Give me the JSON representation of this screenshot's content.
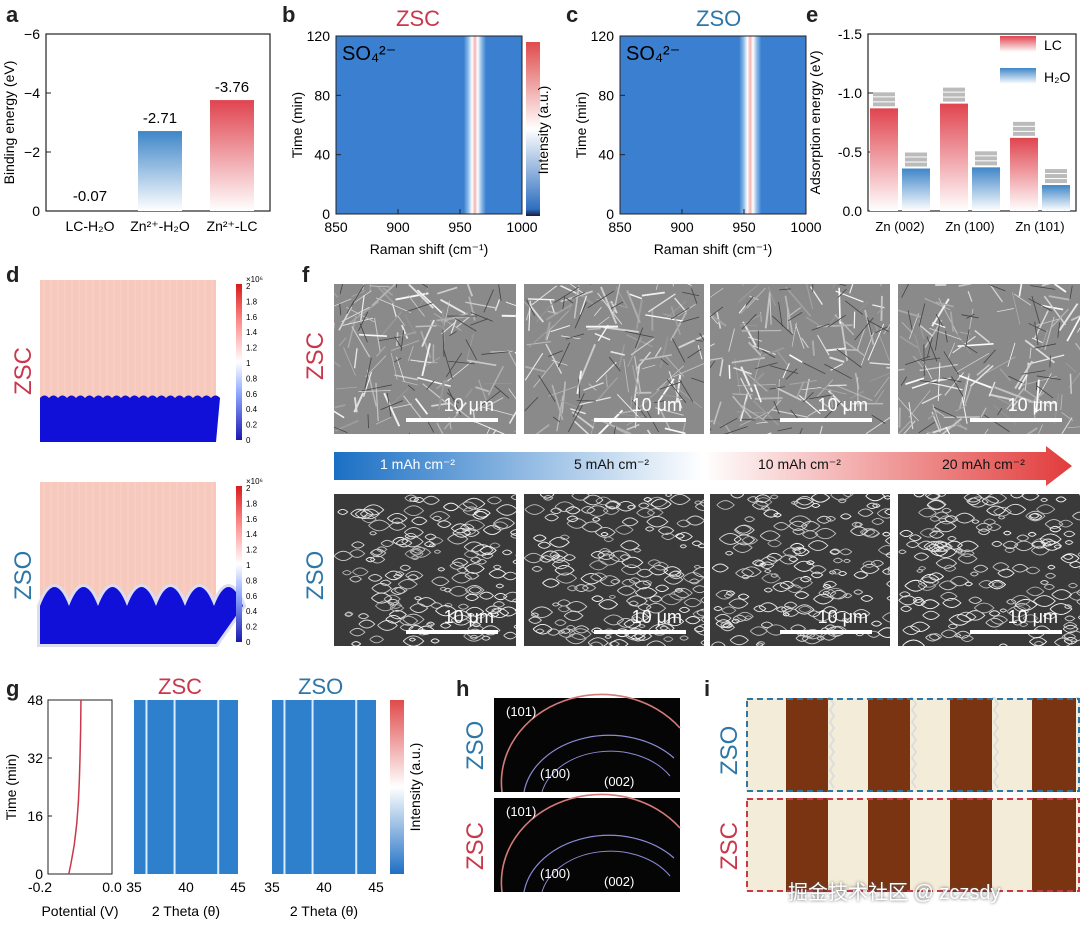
{
  "panels": {
    "a": "a",
    "b": "b",
    "c": "c",
    "d": "d",
    "e": "e",
    "f": "f",
    "g": "g",
    "h": "h",
    "i": "i"
  },
  "colors": {
    "red": "#c9374b",
    "blue": "#2d77a8",
    "map_blue": "#2e7fcc",
    "map_red": "#e23b3b"
  },
  "chart_data": [
    {
      "panel": "a",
      "type": "bar",
      "categories": [
        "LC-H₂O",
        "Zn²⁺-H₂O",
        "Zn²⁺-LC"
      ],
      "values": [
        -0.07,
        -2.71,
        -3.76
      ],
      "value_labels": [
        "-0.07",
        "-2.71",
        "-3.76"
      ],
      "ylabel": "Binding energy (eV)",
      "yticks": [
        "−6",
        "−4",
        "−2",
        "0"
      ],
      "ylim": [
        0,
        -6
      ]
    },
    {
      "panel": "e",
      "type": "bar",
      "categories": [
        "Zn (002)",
        "Zn (100)",
        "Zn (101)"
      ],
      "series": [
        {
          "name": "LC",
          "values": [
            -0.87,
            -0.91,
            -0.62
          ]
        },
        {
          "name": "H₂O",
          "values": [
            -0.36,
            -0.37,
            -0.22
          ]
        }
      ],
      "ylabel": "Adsorption energy (eV)",
      "yticks": [
        "-1.5",
        "-1.0",
        "-0.5",
        "0.0"
      ],
      "ylim": [
        0,
        -1.5
      ]
    },
    {
      "panel": "b",
      "type": "heatmap",
      "title": "ZSC",
      "annotation": "SO₄²⁻",
      "xlabel": "Raman shift (cm⁻¹)",
      "ylabel": "Time (min)",
      "xticks": [
        "850",
        "900",
        "950",
        "1000"
      ],
      "yticks": [
        "0",
        "40",
        "80",
        "120"
      ],
      "colorbar_label": "Intensity (a.u.)",
      "peak_position": 962
    },
    {
      "panel": "c",
      "type": "heatmap",
      "title": "ZSO",
      "annotation": "SO₄²⁻",
      "xlabel": "Raman shift (cm⁻¹)",
      "ylabel": "Time (min)",
      "xticks": [
        "850",
        "900",
        "950",
        "1000"
      ],
      "yticks": [
        "0",
        "40",
        "80",
        "120"
      ],
      "peak_position": 955
    },
    {
      "panel": "g",
      "type": "line",
      "xlabel": "Potential (V)",
      "ylabel": "Time (min)",
      "xticks": [
        "-0.2",
        "0.0"
      ],
      "yticks": [
        "0",
        "16",
        "32",
        "48"
      ],
      "x": [
        -0.135,
        -0.128,
        -0.118,
        -0.11,
        -0.105,
        -0.102,
        -0.1,
        -0.098,
        -0.097
      ],
      "y": [
        0,
        3,
        8,
        14,
        20,
        26,
        32,
        40,
        48
      ]
    },
    {
      "panel": "g",
      "type": "heatmap",
      "title": "ZSC",
      "xlabel": "2 Theta (θ)",
      "xticks": [
        "35",
        "40",
        "45"
      ],
      "colorbar_label": "Intensity (a.u.)",
      "peaks": [
        36.2,
        38.9,
        43.1
      ]
    },
    {
      "panel": "g",
      "type": "heatmap",
      "title": "ZSO",
      "xlabel": "2 Theta (θ)",
      "xticks": [
        "35",
        "40",
        "45"
      ],
      "peaks": [
        36.2,
        38.9,
        43.1
      ]
    }
  ],
  "panel_d": {
    "row_labels": [
      "ZSC",
      "ZSO"
    ],
    "colorbar_ticks": [
      "0",
      "0.2",
      "0.4",
      "0.6",
      "0.8",
      "1",
      "1.2",
      "1.4",
      "1.6",
      "1.8",
      "2"
    ],
    "colorbar_exponent": "×10⁶"
  },
  "panel_f": {
    "row_labels": [
      "ZSC",
      "ZSO"
    ],
    "scale": "10 μm",
    "capacities": [
      "1 mAh cm⁻²",
      "5 mAh cm⁻²",
      "10 mAh cm⁻²",
      "20 mAh cm⁻²"
    ]
  },
  "panel_h": {
    "row_labels": [
      "ZSO",
      "ZSC"
    ],
    "planes": [
      "(101)",
      "(100)",
      "(002)"
    ]
  },
  "panel_i": {
    "row_labels": [
      "ZSO",
      "ZSC"
    ]
  },
  "watermark": "掘金技术社区 @ zczsdy"
}
